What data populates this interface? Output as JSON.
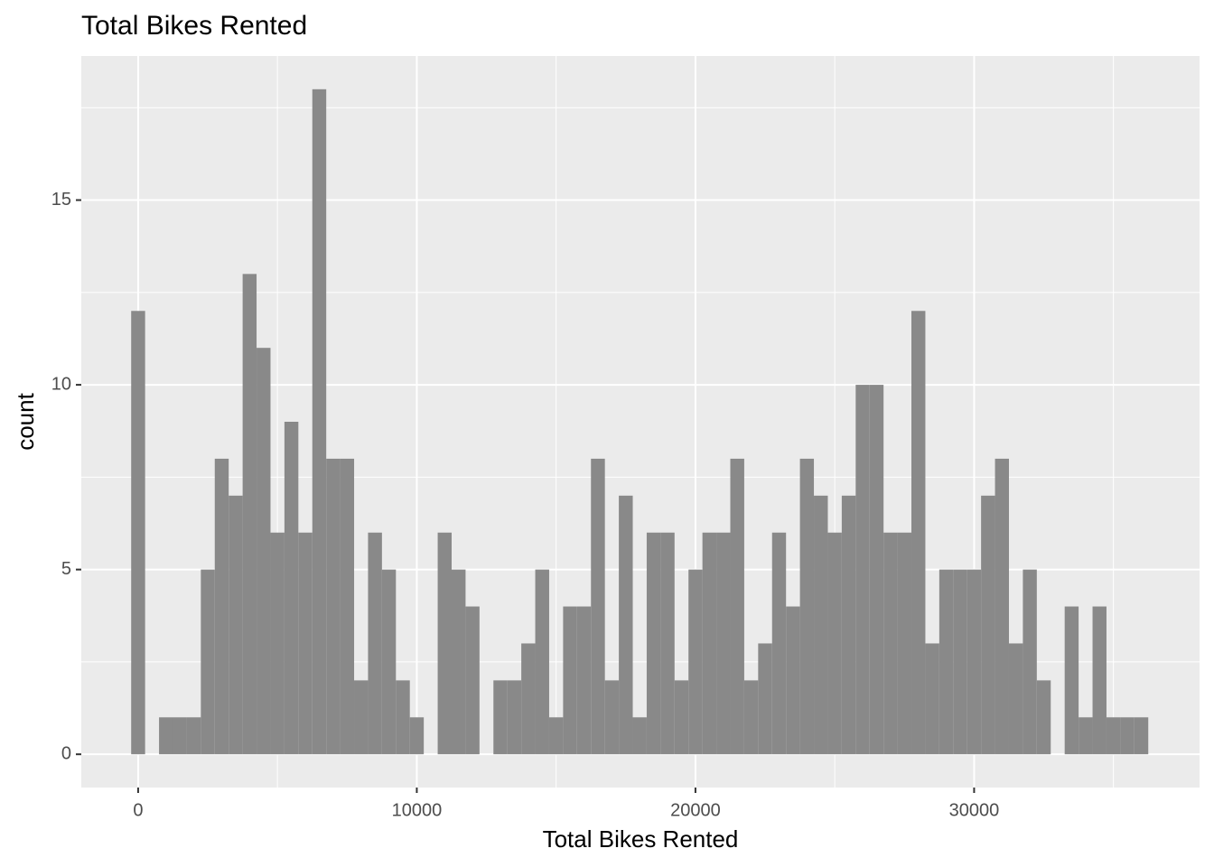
{
  "chart_data": {
    "type": "histogram",
    "title": "Total Bikes Rented",
    "x_label": "Total Bikes Rented",
    "y_label": "count",
    "bins": [
      -250,
      250,
      750,
      1250,
      1750,
      2250,
      2750,
      3250,
      3750,
      4250,
      4750,
      5250,
      5750,
      6250,
      6750,
      7250,
      7750,
      8250,
      8750,
      9250,
      9750,
      10250,
      10750,
      11250,
      11750,
      12250,
      12750,
      13250,
      13750,
      14250,
      14750,
      15250,
      15750,
      16250,
      16750,
      17250,
      17750,
      18250,
      18750,
      19250,
      19750,
      20250,
      20750,
      21250,
      21750,
      22250,
      22750,
      23250,
      23750,
      24250,
      24750,
      25250,
      25750,
      26250,
      26750,
      27250,
      27750,
      28250,
      28750,
      29250,
      29750,
      30250,
      30750,
      31250,
      31750,
      32250,
      32750,
      33250,
      33750,
      34250,
      34750,
      35250,
      35750,
      36250
    ],
    "values": [
      12,
      0,
      1,
      1,
      1,
      5,
      8,
      7,
      13,
      11,
      6,
      9,
      6,
      18,
      8,
      8,
      2,
      6,
      5,
      2,
      1,
      0,
      6,
      5,
      4,
      0,
      2,
      2,
      3,
      5,
      1,
      4,
      4,
      8,
      2,
      7,
      1,
      6,
      6,
      2,
      5,
      6,
      6,
      8,
      2,
      3,
      6,
      4,
      8,
      7,
      6,
      7,
      10,
      10,
      6,
      6,
      12,
      3,
      5,
      5,
      5,
      7,
      8,
      3,
      5,
      2,
      0,
      4,
      1,
      4,
      1,
      1,
      1
    ],
    "color": "#898989",
    "xlim": [
      -2040,
      38090
    ],
    "ylim": [
      -0.9,
      18.9
    ],
    "xticks": [
      0,
      10000,
      20000,
      30000
    ],
    "yticks": [
      0,
      5,
      10,
      15
    ],
    "minor_xticks": [
      5000,
      15000,
      25000,
      35000
    ],
    "minor_yticks": [
      2.5,
      7.5,
      12.5,
      17.5
    ],
    "grid": true
  }
}
